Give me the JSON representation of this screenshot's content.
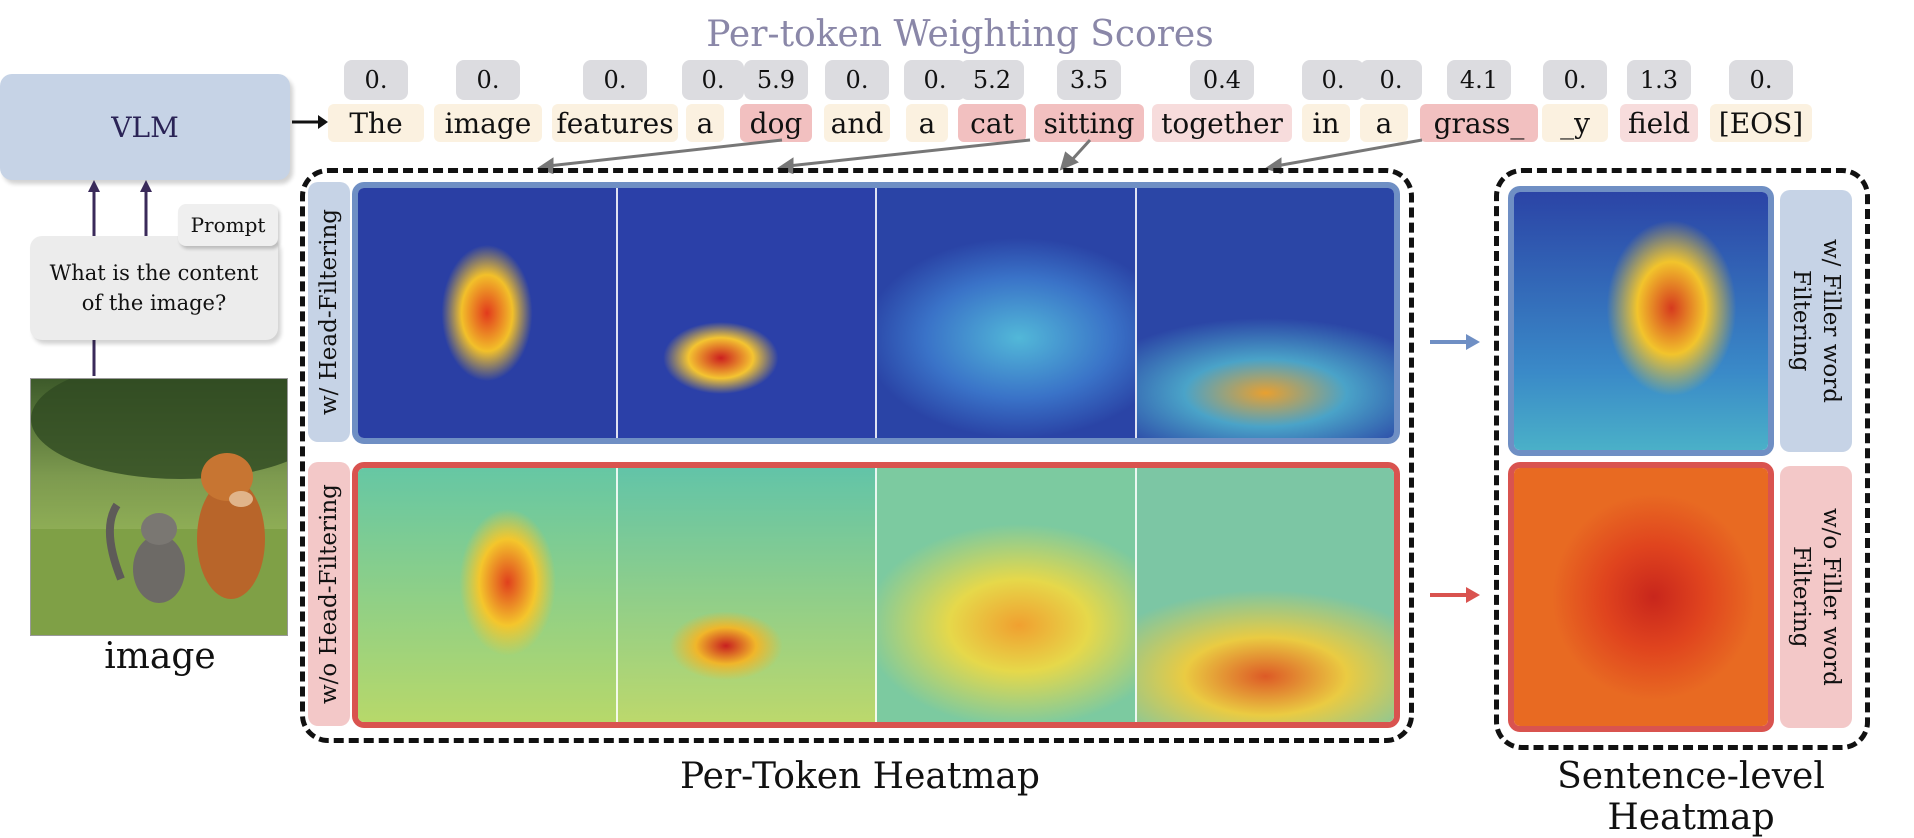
{
  "title": "Per-token Weighting Scores",
  "vlm_label": "VLM",
  "prompt_tag": "Prompt",
  "prompt_text": "What is the content of the image?",
  "image_caption": "image",
  "tokens": [
    {
      "text": "The",
      "score": "0."
    },
    {
      "text": "image",
      "score": "0."
    },
    {
      "text": "features",
      "score": "0."
    },
    {
      "text": "a",
      "score": "0."
    },
    {
      "text": "dog",
      "score": "5.9"
    },
    {
      "text": "and",
      "score": "0."
    },
    {
      "text": "a",
      "score": "0."
    },
    {
      "text": "cat",
      "score": "5.2"
    },
    {
      "text": "sitting",
      "score": "3.5"
    },
    {
      "text": "together",
      "score": "0.4"
    },
    {
      "text": "in",
      "score": "0."
    },
    {
      "text": "a",
      "score": "0."
    },
    {
      "text": "grass_",
      "score": "4.1"
    },
    {
      "text": "_y",
      "score": "0."
    },
    {
      "text": "field",
      "score": "1.3"
    },
    {
      "text": "[EOS]",
      "score": "0."
    }
  ],
  "rows": {
    "with_head": "w/  Head-Filtering",
    "without_head": "w/o Head-Filtering"
  },
  "right_labels": {
    "with_filler": "w/  Filler word Filtering",
    "without_filler": "w/o  Filler word Filtering"
  },
  "captions": {
    "per_token": "Per-Token Heatmap",
    "sentence": "Sentence-level Heatmap"
  },
  "colors": {
    "blue_frame": "#6f8fc4",
    "red_frame": "#d9534f",
    "blue_label": "#c6d3e6",
    "red_label": "#f3c8c8",
    "token_low": "#fbf1e0",
    "token_high": "#f2c0c0",
    "token_mid": "#f7dcdc"
  }
}
